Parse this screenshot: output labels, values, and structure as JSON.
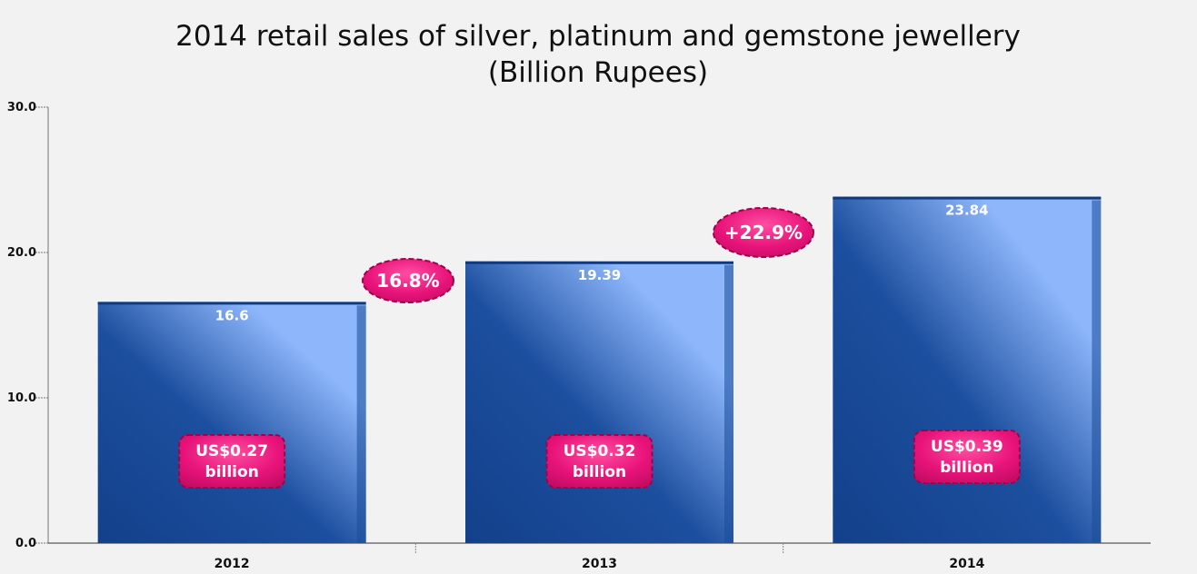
{
  "chart_data": {
    "type": "bar",
    "title_line1": "2014 retail sales of silver, platinum and gemstone jewellery",
    "title_line2": "(Billion Rupees)",
    "xlabel": "",
    "ylabel": "",
    "categories": [
      "2012",
      "2013",
      "2014"
    ],
    "values": [
      16.6,
      19.39,
      23.84
    ],
    "value_labels": [
      "16.6",
      "19.39",
      "23.84"
    ],
    "ylim": [
      0,
      30
    ],
    "yticks": [
      0,
      10,
      20,
      30
    ],
    "ytick_labels": [
      "0.0",
      "10.0",
      "20.0",
      "30.0"
    ],
    "usd_badges": [
      {
        "line1": "US$0.27",
        "line2": "billion"
      },
      {
        "line1": "US$0.32",
        "line2": "billion"
      },
      {
        "line1": "US$0.39",
        "line2": "billion"
      }
    ],
    "growth_badges": [
      "16.8%",
      "+22.9%"
    ],
    "grid": false,
    "legend": "none",
    "colors": {
      "bar_dark": "#14408c",
      "bar_light": "#8fb8ff",
      "badge": "#e6157a",
      "badge_border": "#a3004a"
    }
  }
}
